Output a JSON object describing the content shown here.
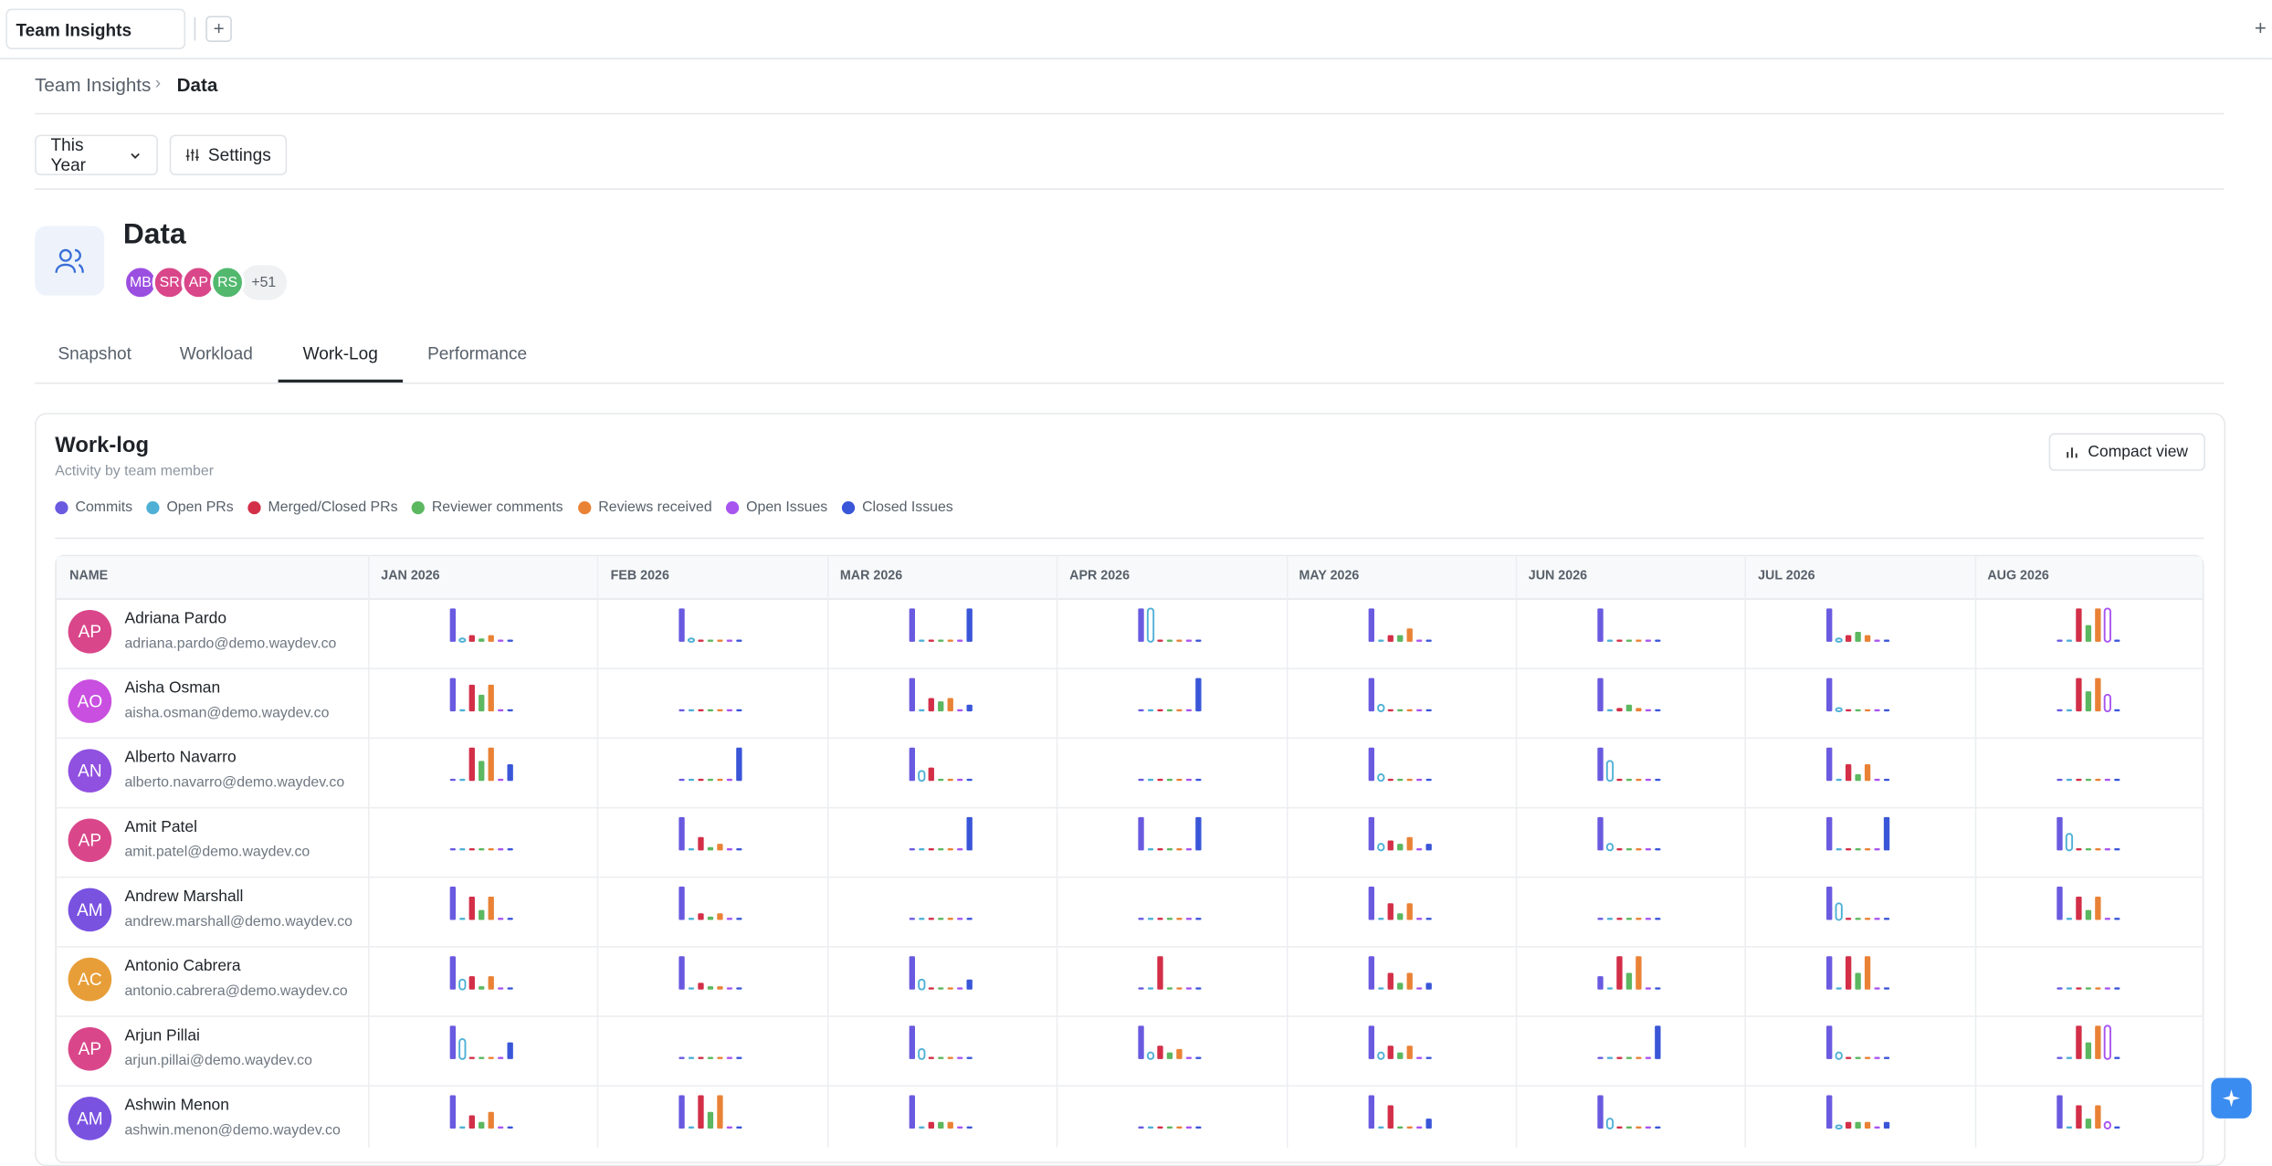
{
  "tab": {
    "title": "Team Insights"
  },
  "breadcrumb": [
    "Team Insights",
    "Data"
  ],
  "toolbar": {
    "period": "This Year",
    "settings": "Settings"
  },
  "team": {
    "name": "Data",
    "avatars": [
      {
        "initials": "MB",
        "color": "#9b4fe0"
      },
      {
        "initials": "SR",
        "color": "#d9478a"
      },
      {
        "initials": "AP",
        "color": "#d9478a"
      },
      {
        "initials": "RS",
        "color": "#52b86e"
      }
    ],
    "more": "+51"
  },
  "tabs": [
    "Snapshot",
    "Workload",
    "Work-Log",
    "Performance"
  ],
  "active_tab": 2,
  "worklog": {
    "title": "Work-log",
    "subtitle": "Activity by team member",
    "compact": "Compact view",
    "legend": [
      {
        "name": "Commits",
        "color": "#6a5ae0",
        "outline": false
      },
      {
        "name": "Open PRs",
        "color": "#4fb0d6",
        "outline": true
      },
      {
        "name": "Merged/Closed PRs",
        "color": "#d32f48",
        "outline": false
      },
      {
        "name": "Reviewer comments",
        "color": "#5cb860",
        "outline": false
      },
      {
        "name": "Reviews received",
        "color": "#ea8236",
        "outline": false
      },
      {
        "name": "Open Issues",
        "color": "#a855f0",
        "outline": true
      },
      {
        "name": "Closed Issues",
        "color": "#3a56d8",
        "outline": false
      }
    ],
    "name_header": "NAME",
    "months": [
      "JAN 2026",
      "FEB 2026",
      "MAR 2026",
      "APR 2026",
      "MAY 2026",
      "JUN 2026",
      "JUL 2026",
      "AUG 2026"
    ],
    "rows": [
      {
        "initials": "AP",
        "color": "#d9478a",
        "name": "Adriana Pardo",
        "email": "adriana.pardo@demo.waydev.co",
        "activity": [
          [
            10,
            1,
            2,
            1,
            2,
            0,
            0
          ],
          [
            10,
            1,
            0,
            0,
            0,
            0,
            0
          ],
          [
            10,
            0,
            0,
            0,
            0,
            0,
            10
          ],
          [
            10,
            10,
            0,
            0,
            0,
            0,
            0
          ],
          [
            10,
            0,
            2,
            2,
            4,
            0,
            0
          ],
          [
            10,
            0,
            0,
            0,
            0,
            0,
            0
          ],
          [
            10,
            1,
            2,
            3,
            2,
            0,
            0
          ],
          [
            0,
            0,
            10,
            5,
            10,
            10,
            0
          ]
        ]
      },
      {
        "initials": "AO",
        "color": "#c94fe0",
        "name": "Aisha Osman",
        "email": "aisha.osman@demo.waydev.co",
        "activity": [
          [
            10,
            0,
            8,
            5,
            8,
            0,
            0
          ],
          [
            0,
            0,
            0,
            0,
            0,
            0,
            0
          ],
          [
            10,
            0,
            4,
            3,
            4,
            0,
            2
          ],
          [
            0,
            0,
            0,
            0,
            0,
            0,
            10
          ],
          [
            10,
            2,
            0,
            0,
            0,
            0,
            0
          ],
          [
            10,
            0,
            1,
            2,
            1,
            0,
            0
          ],
          [
            10,
            1,
            0,
            0,
            0,
            0,
            0
          ],
          [
            0,
            0,
            10,
            6,
            10,
            5,
            0
          ]
        ]
      },
      {
        "initials": "AN",
        "color": "#9050e0",
        "name": "Alberto Navarro",
        "email": "alberto.navarro@demo.waydev.co",
        "activity": [
          [
            0,
            0,
            10,
            6,
            10,
            0,
            5
          ],
          [
            0,
            0,
            0,
            0,
            0,
            0,
            10
          ],
          [
            10,
            3,
            4,
            0,
            0,
            0,
            0
          ],
          [
            0,
            0,
            0,
            0,
            0,
            0,
            0
          ],
          [
            10,
            2,
            0,
            0,
            0,
            0,
            0
          ],
          [
            10,
            6,
            0,
            0,
            0,
            0,
            0
          ],
          [
            10,
            0,
            5,
            2,
            5,
            0,
            0
          ],
          [
            0,
            0,
            0,
            0,
            0,
            0,
            0
          ]
        ]
      },
      {
        "initials": "AP",
        "color": "#d9478a",
        "name": "Amit Patel",
        "email": "amit.patel@demo.waydev.co",
        "activity": [
          [
            0,
            0,
            0,
            0,
            0,
            0,
            0
          ],
          [
            10,
            0,
            4,
            1,
            2,
            0,
            0
          ],
          [
            0,
            0,
            0,
            0,
            0,
            0,
            10
          ],
          [
            10,
            0,
            0,
            0,
            0,
            0,
            10
          ],
          [
            10,
            2,
            3,
            2,
            4,
            0,
            2
          ],
          [
            10,
            2,
            0,
            0,
            0,
            0,
            0
          ],
          [
            10,
            0,
            0,
            0,
            0,
            0,
            10
          ],
          [
            10,
            5,
            0,
            0,
            0,
            0,
            0
          ]
        ]
      },
      {
        "initials": "AM",
        "color": "#7a52e0",
        "name": "Andrew Marshall",
        "email": "andrew.marshall@demo.waydev.co",
        "activity": [
          [
            10,
            0,
            7,
            3,
            7,
            0,
            0
          ],
          [
            10,
            0,
            2,
            1,
            2,
            0,
            0
          ],
          [
            0,
            0,
            0,
            0,
            0,
            0,
            0
          ],
          [
            0,
            0,
            0,
            0,
            0,
            0,
            0
          ],
          [
            10,
            0,
            5,
            2,
            5,
            0,
            0
          ],
          [
            0,
            0,
            0,
            0,
            0,
            0,
            0
          ],
          [
            10,
            5,
            0,
            0,
            0,
            0,
            0
          ],
          [
            10,
            0,
            7,
            3,
            7,
            0,
            0
          ]
        ]
      },
      {
        "initials": "AC",
        "color": "#e89e38",
        "name": "Antonio Cabrera",
        "email": "antonio.cabrera@demo.waydev.co",
        "activity": [
          [
            10,
            3,
            4,
            1,
            4,
            0,
            0
          ],
          [
            10,
            0,
            2,
            1,
            1,
            0,
            0
          ],
          [
            10,
            3,
            0,
            0,
            0,
            0,
            3
          ],
          [
            0,
            0,
            10,
            0,
            0,
            0,
            0
          ],
          [
            10,
            0,
            5,
            2,
            5,
            0,
            2
          ],
          [
            4,
            0,
            10,
            5,
            10,
            0,
            0
          ],
          [
            10,
            0,
            10,
            5,
            10,
            0,
            0
          ],
          [
            0,
            0,
            0,
            0,
            0,
            0,
            0
          ]
        ]
      },
      {
        "initials": "AP",
        "color": "#d9478a",
        "name": "Arjun Pillai",
        "email": "arjun.pillai@demo.waydev.co",
        "activity": [
          [
            10,
            6,
            0,
            0,
            0,
            0,
            5
          ],
          [
            0,
            0,
            0,
            0,
            0,
            0,
            0
          ],
          [
            10,
            3,
            0,
            0,
            0,
            0,
            0
          ],
          [
            10,
            2,
            4,
            2,
            3,
            0,
            0
          ],
          [
            10,
            2,
            4,
            2,
            4,
            0,
            0
          ],
          [
            0,
            0,
            0,
            0,
            0,
            0,
            10
          ],
          [
            10,
            2,
            0,
            0,
            0,
            0,
            0
          ],
          [
            0,
            0,
            10,
            5,
            10,
            10,
            0
          ]
        ]
      },
      {
        "initials": "AM",
        "color": "#7a52e0",
        "name": "Ashwin Menon",
        "email": "ashwin.menon@demo.waydev.co",
        "activity": [
          [
            10,
            0,
            4,
            2,
            5,
            0,
            0
          ],
          [
            10,
            0,
            10,
            5,
            10,
            0,
            0
          ],
          [
            10,
            0,
            2,
            2,
            2,
            0,
            0
          ],
          [
            0,
            0,
            0,
            0,
            0,
            0,
            0
          ],
          [
            10,
            0,
            7,
            0,
            0,
            0,
            3
          ],
          [
            10,
            3,
            0,
            0,
            0,
            0,
            0
          ],
          [
            10,
            1,
            2,
            2,
            2,
            0,
            2
          ],
          [
            10,
            0,
            7,
            3,
            7,
            2,
            0
          ]
        ]
      }
    ]
  }
}
